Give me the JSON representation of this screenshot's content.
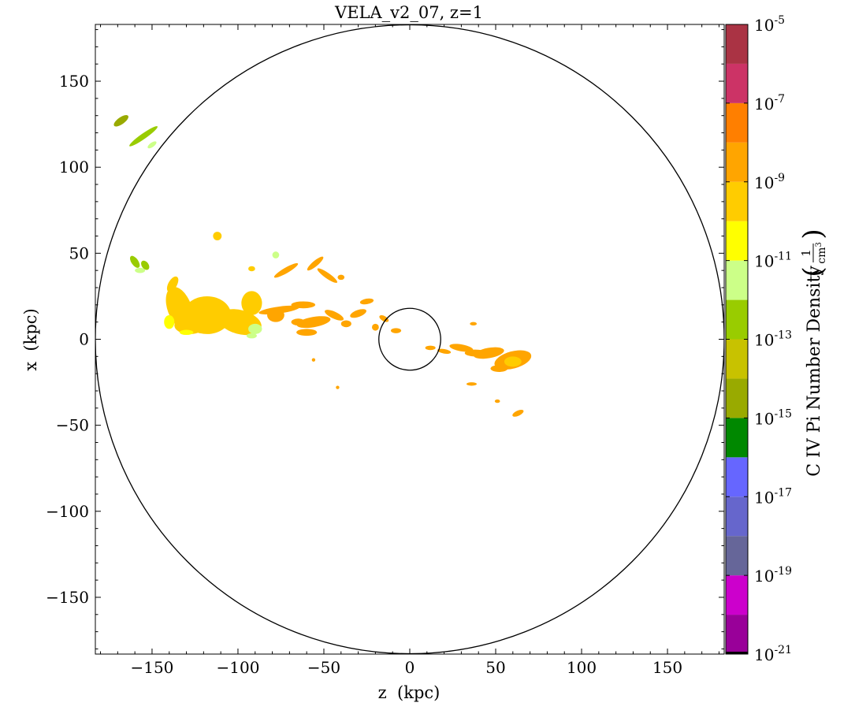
{
  "chart_data": {
    "type": "heatmap",
    "title": "VELA_v2_07, z=1",
    "xlabel": "z  (kpc)",
    "ylabel": "x  (kpc)",
    "xlim": [
      -183,
      183
    ],
    "ylim": [
      -183,
      183
    ],
    "x_ticks": [
      {
        "value": -150,
        "label": "−150"
      },
      {
        "value": -100,
        "label": "−100"
      },
      {
        "value": -50,
        "label": "−50"
      },
      {
        "value": 0,
        "label": "0"
      },
      {
        "value": 50,
        "label": "50"
      },
      {
        "value": 100,
        "label": "100"
      },
      {
        "value": 150,
        "label": "150"
      }
    ],
    "y_ticks": [
      {
        "value": 150,
        "label": "150"
      },
      {
        "value": 100,
        "label": "100"
      },
      {
        "value": 50,
        "label": "50"
      },
      {
        "value": 0,
        "label": "0"
      },
      {
        "value": -50,
        "label": "−50"
      },
      {
        "value": -100,
        "label": "−100"
      },
      {
        "value": -150,
        "label": "−150"
      }
    ],
    "grid": false,
    "circles": [
      {
        "center": [
          0,
          0
        ],
        "radius": 183
      },
      {
        "center": [
          0,
          0
        ],
        "radius": 18
      }
    ],
    "colorbar": {
      "label": "C IV Pi Number Density",
      "unit_numerator": "1",
      "unit_denominator": "cm",
      "unit_denominator_exp": "3",
      "scale": "log",
      "range_log10": [
        -21,
        -5
      ],
      "ticks": [
        {
          "mantissa": "10",
          "exp": "-5",
          "log": -5
        },
        {
          "mantissa": "10",
          "exp": "-7",
          "log": -7
        },
        {
          "mantissa": "10",
          "exp": "-9",
          "log": -9
        },
        {
          "mantissa": "10",
          "exp": "-11",
          "log": -11
        },
        {
          "mantissa": "10",
          "exp": "-13",
          "log": -13
        },
        {
          "mantissa": "10",
          "exp": "-15",
          "log": -15
        },
        {
          "mantissa": "10",
          "exp": "-17",
          "log": -17
        },
        {
          "mantissa": "10",
          "exp": "-19",
          "log": -19
        },
        {
          "mantissa": "10",
          "exp": "-21",
          "log": -21
        }
      ],
      "bands": [
        {
          "from": -21,
          "to": -20,
          "color": "#990099"
        },
        {
          "from": -20,
          "to": -19,
          "color": "#cc00cc"
        },
        {
          "from": -19,
          "to": -18,
          "color": "#666699"
        },
        {
          "from": -18,
          "to": -17,
          "color": "#6666cc"
        },
        {
          "from": -17,
          "to": -16,
          "color": "#6666ff"
        },
        {
          "from": -16,
          "to": -15,
          "color": "#008800"
        },
        {
          "from": -15,
          "to": -14,
          "color": "#99aa00"
        },
        {
          "from": -14,
          "to": -13,
          "color": "#c8c200"
        },
        {
          "from": -13,
          "to": -12,
          "color": "#99cc00"
        },
        {
          "from": -12,
          "to": -11,
          "color": "#ccff88"
        },
        {
          "from": -11,
          "to": -10,
          "color": "#ffff00"
        },
        {
          "from": -10,
          "to": -9,
          "color": "#ffcc00"
        },
        {
          "from": -9,
          "to": -8,
          "color": "#ffa500"
        },
        {
          "from": -8,
          "to": -7,
          "color": "#ff7f00"
        },
        {
          "from": -7,
          "to": -6,
          "color": "#cc3366"
        },
        {
          "from": -6,
          "to": -5,
          "color": "#aa3344"
        }
      ]
    },
    "regions": [
      {
        "kind": "blob",
        "cx": -118,
        "cy": 14,
        "rx": 14,
        "ry": 11,
        "rot": 0,
        "log": -9.5
      },
      {
        "kind": "blob",
        "cx": -134,
        "cy": 18,
        "rx": 7,
        "ry": 13,
        "rot": -20,
        "log": -9.5
      },
      {
        "kind": "blob",
        "cx": -99,
        "cy": 10,
        "rx": 13,
        "ry": 7,
        "rot": 15,
        "log": -9.5
      },
      {
        "kind": "blob",
        "cx": -92,
        "cy": 21,
        "rx": 6,
        "ry": 7,
        "rot": 0,
        "log": -9.5
      },
      {
        "kind": "blob",
        "cx": -128,
        "cy": 8,
        "rx": 9,
        "ry": 5,
        "rot": 0,
        "log": -9.5
      },
      {
        "kind": "blob",
        "cx": -90,
        "cy": 6,
        "rx": 4,
        "ry": 3,
        "rot": 0,
        "log": -11.5
      },
      {
        "kind": "blob",
        "cx": -76,
        "cy": 17,
        "rx": 12,
        "ry": 2,
        "rot": -8,
        "log": -8.5
      },
      {
        "kind": "blob",
        "cx": -62,
        "cy": 20,
        "rx": 7,
        "ry": 2,
        "rot": 0,
        "log": -8.5
      },
      {
        "kind": "blob",
        "cx": -78,
        "cy": 14,
        "rx": 5,
        "ry": 4,
        "rot": 0,
        "log": -8.5
      },
      {
        "kind": "blob",
        "cx": -65,
        "cy": 10,
        "rx": 4,
        "ry": 2,
        "rot": 0,
        "log": -8.5
      },
      {
        "kind": "blob",
        "cx": -56,
        "cy": 10,
        "rx": 10,
        "ry": 3,
        "rot": -10,
        "log": -8.5
      },
      {
        "kind": "blob",
        "cx": -60,
        "cy": 4,
        "rx": 6,
        "ry": 2,
        "rot": 0,
        "log": -8.5
      },
      {
        "kind": "blob",
        "cx": -44,
        "cy": 14,
        "rx": 6,
        "ry": 2,
        "rot": 25,
        "log": -8.5
      },
      {
        "kind": "blob",
        "cx": -30,
        "cy": 15,
        "rx": 5,
        "ry": 2,
        "rot": -20,
        "log": -8.5
      },
      {
        "kind": "blob",
        "cx": -37,
        "cy": 9,
        "rx": 3,
        "ry": 2,
        "rot": 0,
        "log": -8.5
      },
      {
        "kind": "blob",
        "cx": -25,
        "cy": 22,
        "rx": 4,
        "ry": 1.6,
        "rot": -10,
        "log": -8.5
      },
      {
        "kind": "blob",
        "cx": -15,
        "cy": 12,
        "rx": 3,
        "ry": 1.5,
        "rot": 30,
        "log": -8.5
      },
      {
        "kind": "blob",
        "cx": -20,
        "cy": 7,
        "rx": 2,
        "ry": 2,
        "rot": 0,
        "log": -8.5
      },
      {
        "kind": "blob",
        "cx": -8,
        "cy": 5,
        "rx": 3,
        "ry": 1.5,
        "rot": 0,
        "log": -8.5
      },
      {
        "kind": "blob",
        "cx": 60,
        "cy": -12,
        "rx": 11,
        "ry": 5,
        "rot": -15,
        "log": -8.5
      },
      {
        "kind": "blob",
        "cx": 46,
        "cy": -8,
        "rx": 9,
        "ry": 3,
        "rot": -10,
        "log": -8.5
      },
      {
        "kind": "blob",
        "cx": 38,
        "cy": -8,
        "rx": 6,
        "ry": 2,
        "rot": 0,
        "log": -8.5
      },
      {
        "kind": "blob",
        "cx": 30,
        "cy": -5,
        "rx": 7,
        "ry": 2,
        "rot": 10,
        "log": -8.5
      },
      {
        "kind": "blob",
        "cx": 52,
        "cy": -17,
        "rx": 5,
        "ry": 2,
        "rot": 0,
        "log": -8.5
      },
      {
        "kind": "blob",
        "cx": 60,
        "cy": -13,
        "rx": 5,
        "ry": 3,
        "rot": 0,
        "log": -9.5
      },
      {
        "kind": "blob",
        "cx": 20,
        "cy": -7,
        "rx": 4,
        "ry": 1.3,
        "rot": 10,
        "log": -8.5
      },
      {
        "kind": "blob",
        "cx": 12,
        "cy": -5,
        "rx": 3,
        "ry": 1.3,
        "rot": 0,
        "log": -8.5
      },
      {
        "kind": "blob",
        "cx": -72,
        "cy": 40,
        "rx": 8,
        "ry": 1.6,
        "rot": -30,
        "log": -8.5
      },
      {
        "kind": "blob",
        "cx": -55,
        "cy": 44,
        "rx": 6,
        "ry": 1.6,
        "rot": -40,
        "log": -8.5
      },
      {
        "kind": "blob",
        "cx": -48,
        "cy": 37,
        "rx": 7,
        "ry": 1.6,
        "rot": 35,
        "log": -8.5
      },
      {
        "kind": "blob",
        "cx": -40,
        "cy": 36,
        "rx": 2,
        "ry": 1.5,
        "rot": 0,
        "log": -8.5
      },
      {
        "kind": "blob",
        "cx": -112,
        "cy": 60,
        "rx": 2.5,
        "ry": 2.5,
        "rot": 0,
        "log": -9.5
      },
      {
        "kind": "blob",
        "cx": -78,
        "cy": 49,
        "rx": 2,
        "ry": 2,
        "rot": 0,
        "log": -11.5
      },
      {
        "kind": "blob",
        "cx": -92,
        "cy": 41,
        "rx": 2,
        "ry": 1.5,
        "rot": 0,
        "log": -9.5
      },
      {
        "kind": "blob",
        "cx": -138,
        "cy": 32,
        "rx": 2.5,
        "ry": 5,
        "rot": 30,
        "log": -9.5
      },
      {
        "kind": "blob",
        "cx": -160,
        "cy": 45,
        "rx": 2,
        "ry": 4,
        "rot": -35,
        "log": -12.5
      },
      {
        "kind": "blob",
        "cx": -154,
        "cy": 43,
        "rx": 2,
        "ry": 3,
        "rot": -35,
        "log": -12.5
      },
      {
        "kind": "blob",
        "cx": -157,
        "cy": 40,
        "rx": 3,
        "ry": 1.5,
        "rot": 0,
        "log": -11.5
      },
      {
        "kind": "blob",
        "cx": -140,
        "cy": 10,
        "rx": 3,
        "ry": 4,
        "rot": 0,
        "log": -10.5
      },
      {
        "kind": "blob",
        "cx": -130,
        "cy": 4,
        "rx": 4,
        "ry": 1.5,
        "rot": 0,
        "log": -10.5
      },
      {
        "kind": "blob",
        "cx": -92,
        "cy": 2,
        "rx": 3,
        "ry": 1.5,
        "rot": 0,
        "log": -11.5
      },
      {
        "kind": "blob",
        "cx": 37,
        "cy": 9,
        "rx": 2,
        "ry": 1,
        "rot": 0,
        "log": -8.5
      },
      {
        "kind": "blob",
        "cx": 63,
        "cy": -43,
        "rx": 3.5,
        "ry": 1.5,
        "rot": -25,
        "log": -8.5
      },
      {
        "kind": "blob",
        "cx": 36,
        "cy": -26,
        "rx": 3,
        "ry": 1,
        "rot": 0,
        "log": -8.5
      },
      {
        "kind": "blob",
        "cx": 51,
        "cy": -36,
        "rx": 1.5,
        "ry": 1,
        "rot": 0,
        "log": -8.5
      },
      {
        "kind": "blob",
        "cx": -42,
        "cy": -28,
        "rx": 1,
        "ry": 1,
        "rot": 0,
        "log": -8.5
      },
      {
        "kind": "blob",
        "cx": -56,
        "cy": -12,
        "rx": 1,
        "ry": 1,
        "rot": 0,
        "log": -8.5
      },
      {
        "kind": "blob",
        "cx": -155,
        "cy": 118,
        "rx": 10,
        "ry": 1.6,
        "rot": -35,
        "log": -12.5
      },
      {
        "kind": "blob",
        "cx": -168,
        "cy": 127,
        "rx": 5,
        "ry": 2,
        "rot": -35,
        "log": -14.5
      },
      {
        "kind": "blob",
        "cx": -150,
        "cy": 113,
        "rx": 3,
        "ry": 1.3,
        "rot": -35,
        "log": -11.5
      }
    ]
  }
}
